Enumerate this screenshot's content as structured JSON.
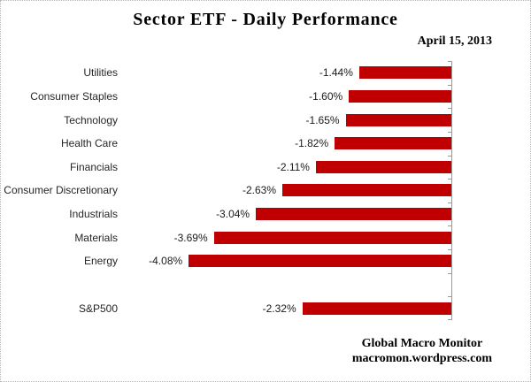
{
  "header": {
    "title": "Sector ETF - Daily Performance",
    "date": "April 15, 2013"
  },
  "chart_data": {
    "type": "bar",
    "orientation": "horizontal",
    "title": "Sector ETF - Daily Performance",
    "date_annotation": "April 15, 2013",
    "categories": [
      "Utilities",
      "Consumer Staples",
      "Technology",
      "Health Care",
      "Financials",
      "Consumer Discretionary",
      "Industrials",
      "Materials",
      "Energy",
      "",
      "S&P500"
    ],
    "values": [
      -1.44,
      -1.6,
      -1.65,
      -1.82,
      -2.11,
      -2.63,
      -3.04,
      -3.69,
      -4.08,
      null,
      -2.32
    ],
    "value_labels": [
      "-1.44%",
      "-1.60%",
      "-1.65%",
      "-1.82%",
      "-2.11%",
      "-2.63%",
      "-3.04%",
      "-3.69%",
      "-4.08%",
      "",
      "-2.32%"
    ],
    "xlabel": "",
    "ylabel": "",
    "xlim": [
      -4.5,
      0
    ],
    "grid": false,
    "legend": false,
    "value_axis_position": "right",
    "data_label_position": "outside-end-left",
    "bar_color": "#C00000",
    "axis_color": "#9a9a9a"
  },
  "footer": {
    "source_line1": "Global Macro Monitor",
    "source_line2": "macromon.wordpress.com"
  }
}
